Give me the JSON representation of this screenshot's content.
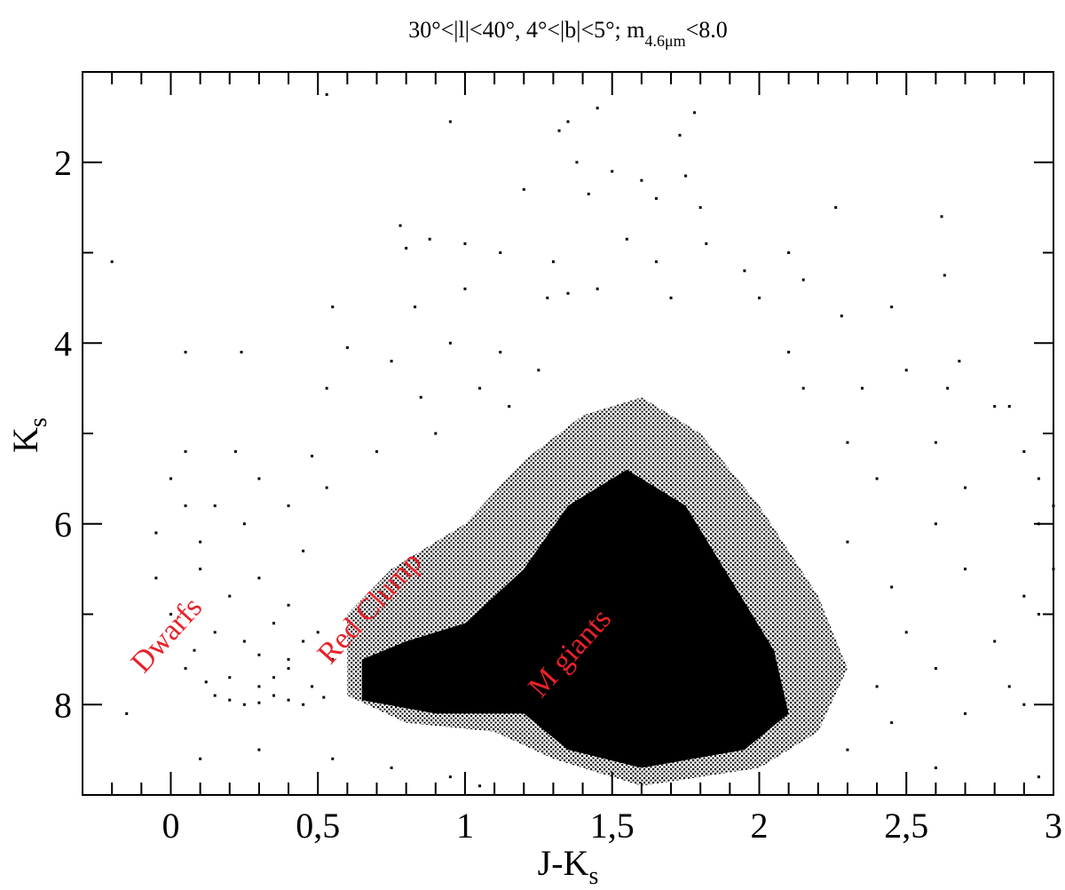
{
  "chart_data": {
    "type": "scatter",
    "title": {
      "main": "30°<|l|<40°, 4°<|b|<5°; m",
      "sub": "4.6μm",
      "tail": "<8.0"
    },
    "xlabel": {
      "main": "J-K",
      "sub": "s"
    },
    "ylabel": {
      "main": "K",
      "sub": "s"
    },
    "xlim": [
      -0.3,
      3.0
    ],
    "ylim": [
      1.0,
      9.0
    ],
    "y_inverted": true,
    "grid": false,
    "legend": "none",
    "x_ticks": [
      {
        "value": 0,
        "label": "0"
      },
      {
        "value": 0.5,
        "label": "0,5"
      },
      {
        "value": 1,
        "label": "1"
      },
      {
        "value": 1.5,
        "label": "1,5"
      },
      {
        "value": 2,
        "label": "2"
      },
      {
        "value": 2.5,
        "label": "2,5"
      },
      {
        "value": 3,
        "label": "3"
      }
    ],
    "x_minor_step": 0.1,
    "y_ticks": [
      {
        "value": 2,
        "label": "2"
      },
      {
        "value": 4,
        "label": "4"
      },
      {
        "value": 6,
        "label": "6"
      },
      {
        "value": 8,
        "label": "8"
      }
    ],
    "y_minor_step": 1,
    "marker_color": "#000000",
    "annotation_color": "#e8222a",
    "annotations": [
      {
        "text": "Dwarfs",
        "x": 0.01,
        "y": 7.3
      },
      {
        "text": "Red Clump",
        "x": 0.7,
        "y": 7.0
      },
      {
        "text": "M giants",
        "x": 1.38,
        "y": 7.5
      }
    ],
    "dense_region": [
      [
        0.6,
        7.9
      ],
      [
        0.6,
        7.0
      ],
      [
        0.75,
        6.5
      ],
      [
        1.0,
        6.0
      ],
      [
        1.2,
        5.3
      ],
      [
        1.4,
        4.8
      ],
      [
        1.6,
        4.6
      ],
      [
        1.8,
        5.0
      ],
      [
        2.0,
        5.8
      ],
      [
        2.2,
        6.8
      ],
      [
        2.3,
        7.6
      ],
      [
        2.2,
        8.3
      ],
      [
        2.0,
        8.7
      ],
      [
        1.6,
        8.9
      ],
      [
        1.3,
        8.6
      ],
      [
        1.1,
        8.3
      ],
      [
        0.8,
        8.2
      ]
    ],
    "saturated_region": [
      [
        0.65,
        7.95
      ],
      [
        0.65,
        7.5
      ],
      [
        0.8,
        7.3
      ],
      [
        1.0,
        7.1
      ],
      [
        1.2,
        6.5
      ],
      [
        1.35,
        5.8
      ],
      [
        1.55,
        5.4
      ],
      [
        1.75,
        5.8
      ],
      [
        1.9,
        6.6
      ],
      [
        2.05,
        7.4
      ],
      [
        2.1,
        8.1
      ],
      [
        1.95,
        8.5
      ],
      [
        1.6,
        8.7
      ],
      [
        1.35,
        8.5
      ],
      [
        1.2,
        8.1
      ],
      [
        0.9,
        8.1
      ]
    ],
    "points": [
      [
        0.95,
        1.55
      ],
      [
        1.32,
        1.65
      ],
      [
        1.35,
        1.55
      ],
      [
        1.45,
        1.4
      ],
      [
        1.78,
        1.45
      ],
      [
        1.73,
        1.7
      ],
      [
        0.53,
        1.25
      ],
      [
        1.5,
        2.1
      ],
      [
        1.38,
        2.0
      ],
      [
        1.75,
        2.15
      ],
      [
        1.2,
        2.3
      ],
      [
        1.42,
        2.35
      ],
      [
        1.6,
        2.2
      ],
      [
        1.65,
        2.4
      ],
      [
        1.8,
        2.5
      ],
      [
        2.26,
        2.5
      ],
      [
        2.62,
        2.6
      ],
      [
        -0.2,
        3.1
      ],
      [
        0.78,
        2.7
      ],
      [
        0.8,
        2.95
      ],
      [
        0.88,
        2.85
      ],
      [
        1.0,
        2.9
      ],
      [
        1.12,
        3.0
      ],
      [
        1.3,
        3.1
      ],
      [
        1.55,
        2.85
      ],
      [
        1.65,
        3.1
      ],
      [
        1.82,
        2.9
      ],
      [
        1.95,
        3.2
      ],
      [
        2.1,
        3.0
      ],
      [
        2.15,
        3.3
      ],
      [
        2.63,
        3.25
      ],
      [
        0.55,
        3.6
      ],
      [
        0.83,
        3.6
      ],
      [
        1.0,
        3.4
      ],
      [
        1.28,
        3.5
      ],
      [
        1.35,
        3.45
      ],
      [
        1.45,
        3.4
      ],
      [
        1.7,
        3.5
      ],
      [
        2.0,
        3.5
      ],
      [
        2.28,
        3.7
      ],
      [
        2.45,
        3.6
      ],
      [
        0.05,
        4.1
      ],
      [
        0.24,
        4.1
      ],
      [
        0.6,
        4.05
      ],
      [
        0.75,
        4.2
      ],
      [
        0.95,
        4.0
      ],
      [
        1.12,
        4.1
      ],
      [
        1.25,
        4.3
      ],
      [
        2.1,
        4.1
      ],
      [
        2.5,
        4.3
      ],
      [
        2.68,
        4.2
      ],
      [
        0.53,
        4.5
      ],
      [
        0.85,
        4.6
      ],
      [
        1.05,
        4.5
      ],
      [
        1.15,
        4.7
      ],
      [
        2.15,
        4.5
      ],
      [
        2.35,
        4.5
      ],
      [
        2.64,
        4.5
      ],
      [
        2.8,
        4.7
      ],
      [
        2.85,
        4.7
      ],
      [
        0.05,
        5.2
      ],
      [
        0.22,
        5.2
      ],
      [
        0.3,
        5.5
      ],
      [
        0.48,
        5.25
      ],
      [
        0.7,
        5.2
      ],
      [
        0.9,
        5.0
      ],
      [
        2.3,
        5.1
      ],
      [
        2.6,
        5.1
      ],
      [
        2.9,
        5.2
      ],
      [
        0.0,
        5.5
      ],
      [
        0.05,
        5.8
      ],
      [
        0.15,
        5.8
      ],
      [
        0.4,
        5.8
      ],
      [
        0.53,
        5.6
      ],
      [
        2.4,
        5.5
      ],
      [
        2.7,
        5.6
      ],
      [
        2.95,
        5.5
      ],
      [
        3.0,
        5.8
      ],
      [
        -0.05,
        6.1
      ],
      [
        0.1,
        6.2
      ],
      [
        0.25,
        6.0
      ],
      [
        0.45,
        6.3
      ],
      [
        2.3,
        6.2
      ],
      [
        2.6,
        6.0
      ],
      [
        2.95,
        6.0
      ],
      [
        -0.05,
        6.6
      ],
      [
        0.1,
        6.5
      ],
      [
        0.2,
        6.8
      ],
      [
        0.3,
        6.6
      ],
      [
        0.4,
        6.9
      ],
      [
        2.45,
        6.7
      ],
      [
        2.7,
        6.5
      ],
      [
        2.9,
        6.8
      ],
      [
        3.0,
        6.5
      ],
      [
        0.0,
        7.0
      ],
      [
        0.15,
        7.2
      ],
      [
        0.25,
        7.3
      ],
      [
        0.35,
        7.1
      ],
      [
        0.45,
        7.3
      ],
      [
        0.08,
        7.4
      ],
      [
        0.3,
        7.45
      ],
      [
        0.4,
        7.5
      ],
      [
        0.5,
        7.2
      ],
      [
        2.5,
        7.2
      ],
      [
        2.8,
        7.3
      ],
      [
        2.95,
        7.0
      ],
      [
        0.05,
        7.6
      ],
      [
        0.2,
        7.7
      ],
      [
        0.3,
        7.8
      ],
      [
        0.4,
        7.6
      ],
      [
        0.55,
        7.5
      ],
      [
        0.12,
        7.75
      ],
      [
        0.35,
        7.7
      ],
      [
        0.48,
        7.8
      ],
      [
        2.4,
        7.8
      ],
      [
        2.6,
        7.6
      ],
      [
        2.85,
        7.8
      ],
      [
        -0.15,
        8.1
      ],
      [
        0.15,
        7.9
      ],
      [
        0.25,
        8.0
      ],
      [
        0.35,
        7.9
      ],
      [
        0.45,
        8.0
      ],
      [
        0.2,
        7.95
      ],
      [
        0.3,
        7.98
      ],
      [
        0.4,
        7.95
      ],
      [
        0.52,
        7.92
      ],
      [
        2.45,
        8.2
      ],
      [
        2.7,
        8.1
      ],
      [
        2.9,
        8.0
      ],
      [
        0.1,
        8.6
      ],
      [
        0.3,
        8.5
      ],
      [
        0.55,
        8.6
      ],
      [
        0.75,
        8.7
      ],
      [
        0.95,
        8.8
      ],
      [
        1.05,
        8.9
      ],
      [
        2.3,
        8.5
      ],
      [
        2.6,
        8.7
      ],
      [
        2.95,
        8.8
      ]
    ]
  }
}
